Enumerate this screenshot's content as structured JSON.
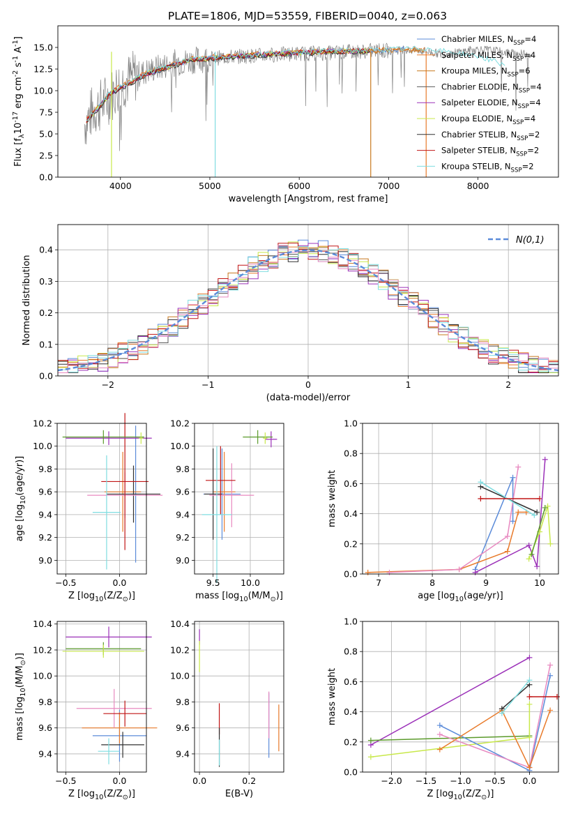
{
  "figure_title": "PLATE=1806, MJD=53559, FIBERID=0040, z=0.063",
  "chart_data": [
    {
      "id": "spectrum",
      "type": "line",
      "title": "PLATE=1806, MJD=53559, FIBERID=0040, z=0.063",
      "xlabel": "wavelength [Angstrom, rest frame]",
      "ylabel": "Flux [f$_\\lambda$10$^{-17}$ erg cm$^{-2}$ s$^{-1}$ A$^{-1}$]",
      "xlim": [
        3300,
        8900
      ],
      "ylim": [
        0,
        17.5
      ],
      "xticks": [
        4000,
        5000,
        6000,
        7000,
        8000
      ],
      "yticks": [
        0.0,
        2.5,
        5.0,
        7.5,
        10.0,
        12.5,
        15.0
      ],
      "legend_position": "right",
      "series": [
        {
          "name": "Chabrier MILES, N$_{SSP}$=4",
          "color": "#5b8bd9",
          "x": [
            3620,
            3900,
            4300,
            4800,
            5300,
            5800,
            6300,
            6800,
            7200
          ],
          "y": [
            6.5,
            9.8,
            12.0,
            13.6,
            14.0,
            14.3,
            14.5,
            14.6,
            14.8
          ]
        },
        {
          "name": "Salpeter MILES, N$_{SSP}$=4",
          "color": "#e87a2a",
          "x": [
            3620,
            3900,
            4300,
            4800,
            5300,
            5800,
            6300,
            6800,
            7400
          ],
          "y": [
            6.6,
            9.9,
            12.1,
            13.7,
            14.1,
            14.4,
            14.6,
            14.7,
            14.8
          ]
        },
        {
          "name": "Kroupa MILES, N$_{SSP}$=6",
          "color": "#c8781e",
          "x": [
            3620,
            3900,
            4300,
            4800,
            5300,
            5800,
            6300,
            6800,
            7400
          ],
          "y": [
            6.5,
            9.8,
            12.0,
            13.6,
            14.0,
            14.3,
            14.5,
            14.6,
            14.7
          ]
        },
        {
          "name": "Chabrier ELODIE, N$_{SSP}$=4",
          "color": "#5a5a5a",
          "x": [
            3620,
            3900,
            4300,
            4800,
            5300,
            5800,
            6300,
            6800
          ],
          "y": [
            6.4,
            9.7,
            11.9,
            13.5,
            13.9,
            14.2,
            14.4,
            14.6
          ]
        },
        {
          "name": "Salpeter ELODIE, N$_{SSP}$=4",
          "color": "#9b30b8",
          "x": [
            3620,
            3900,
            4300,
            4800,
            5300,
            5800,
            6300,
            6800
          ],
          "y": [
            6.5,
            9.8,
            12.0,
            13.6,
            14.0,
            14.3,
            14.5,
            14.6
          ]
        },
        {
          "name": "Kroupa ELODIE, N$_{SSP}$=4",
          "color": "#c8e84a",
          "x": [
            3620,
            3900,
            4300,
            4800,
            5300,
            5800,
            6300,
            6800
          ],
          "y": [
            6.5,
            9.8,
            12.0,
            13.6,
            14.0,
            14.3,
            14.5,
            14.6
          ]
        },
        {
          "name": "Chabrier STELIB, N$_{SSP}$=2",
          "color": "#303030",
          "x": [
            3620,
            3900,
            4300,
            4800,
            5300,
            5800,
            6300,
            6800
          ],
          "y": [
            6.4,
            9.7,
            11.9,
            13.5,
            13.9,
            14.2,
            14.4,
            14.5
          ]
        },
        {
          "name": "Salpeter STELIB, N$_{SSP}$=2",
          "color": "#c01515",
          "x": [
            3620,
            3900,
            4300,
            4800,
            5300,
            5800,
            6300,
            6800
          ],
          "y": [
            6.5,
            9.8,
            12.0,
            13.6,
            14.0,
            14.3,
            14.5,
            14.6
          ]
        },
        {
          "name": "Kroupa STELIB, N$_{SSP}$=2",
          "color": "#7fdde0",
          "x": [
            3620,
            3900,
            4300,
            4800,
            5300,
            5800,
            6300,
            6800,
            7400,
            8000,
            8300
          ],
          "y": [
            6.6,
            9.9,
            12.1,
            13.7,
            14.1,
            14.4,
            14.6,
            14.7,
            14.9,
            14.0,
            13.0
          ]
        }
      ],
      "data_series": {
        "name": "observed spectrum",
        "color": "#808080",
        "x": [
          3600,
          3700,
          3800,
          3900,
          4000,
          4200,
          4400,
          4600,
          4800,
          5000,
          5200,
          5400,
          5600,
          5800,
          6000,
          6200,
          6400,
          6600,
          6800,
          7000,
          7200,
          7400,
          7600,
          7800,
          8000,
          8200,
          8400,
          8600
        ],
        "y": [
          6.2,
          7.8,
          8.5,
          9.5,
          10.8,
          11.9,
          12.6,
          13.2,
          13.5,
          13.7,
          13.9,
          14.0,
          14.1,
          14.2,
          14.3,
          14.3,
          14.4,
          14.5,
          14.6,
          14.6,
          14.7,
          14.6,
          14.2,
          14.5,
          14.8,
          14.6,
          14.3,
          14.2
        ]
      }
    },
    {
      "id": "residuals",
      "type": "histogram",
      "xlabel": "(data-model)/error",
      "ylabel": "Normed distribution",
      "xlim": [
        -2.5,
        2.5
      ],
      "ylim": [
        0,
        0.48
      ],
      "xticks": [
        -2,
        -1,
        0,
        1,
        2
      ],
      "yticks": [
        0.0,
        0.1,
        0.2,
        0.3,
        0.4
      ],
      "legend": [
        "$\\mathcal{N}(0,1)$"
      ],
      "legend_position": "upper right",
      "grid": true
    },
    {
      "id": "age_vs_Z",
      "type": "errorbar",
      "xlabel": "Z [log$_{10}$(Z/Z$_\\odot$)]",
      "ylabel": "age  [log$_{10}$(age/yr)]",
      "xlim": [
        -0.58,
        0.25
      ],
      "ylim": [
        8.88,
        10.2
      ],
      "xticks": [
        -0.5,
        0.0
      ],
      "yticks": [
        9.0,
        9.2,
        9.4,
        9.6,
        9.8,
        10.0,
        10.2
      ],
      "grid": true
    },
    {
      "id": "age_vs_mass",
      "type": "errorbar",
      "xlabel": "mass [log$_{10}$(M/M$_\\odot$)]",
      "ylabel": "",
      "xlim": [
        9.25,
        10.45
      ],
      "ylim": [
        8.88,
        10.2
      ],
      "xticks": [
        9.5,
        10.0
      ],
      "yticks": [
        9.0,
        9.2,
        9.4,
        9.6,
        9.8,
        10.0,
        10.2
      ],
      "grid": true
    },
    {
      "id": "weight_vs_age",
      "type": "line",
      "xlabel": "age  [log$_{10}$(age/yr)]",
      "ylabel": "mass weight",
      "xlim": [
        6.7,
        10.35
      ],
      "ylim": [
        0,
        1.0
      ],
      "xticks": [
        7,
        8,
        9,
        10
      ],
      "yticks": [
        0.0,
        0.2,
        0.4,
        0.6,
        0.8,
        1.0
      ],
      "grid": true
    },
    {
      "id": "mass_vs_Z",
      "type": "errorbar",
      "xlabel": "Z [log$_{10}$(Z/Z$_\\odot$)]",
      "ylabel": "mass [log$_{10}$(M/M$_\\odot$)]",
      "xlim": [
        -0.58,
        0.25
      ],
      "ylim": [
        9.26,
        10.42
      ],
      "xticks": [
        -0.5,
        0.0
      ],
      "yticks": [
        9.4,
        9.6,
        9.8,
        10.0,
        10.2,
        10.4
      ],
      "grid": true
    },
    {
      "id": "mass_vs_ebv",
      "type": "errorbar",
      "xlabel": "E(B-V)",
      "ylabel": "",
      "xlim": [
        -0.02,
        0.34
      ],
      "ylim": [
        9.26,
        10.42
      ],
      "xticks": [
        0.0,
        0.2
      ],
      "yticks": [
        9.4,
        9.6,
        9.8,
        10.0,
        10.2,
        10.4
      ],
      "grid": true
    },
    {
      "id": "weight_vs_Z",
      "type": "line",
      "xlabel": "Z [log$_{10}$(Z/Z$_\\odot$)]",
      "ylabel": "mass weight",
      "xlim": [
        -2.42,
        0.42
      ],
      "ylim": [
        0,
        1.0
      ],
      "xticks": [
        -2.0,
        -1.5,
        -1.0,
        -0.5,
        0.0
      ],
      "yticks": [
        0.0,
        0.2,
        0.4,
        0.6,
        0.8,
        1.0
      ],
      "grid": true
    }
  ]
}
